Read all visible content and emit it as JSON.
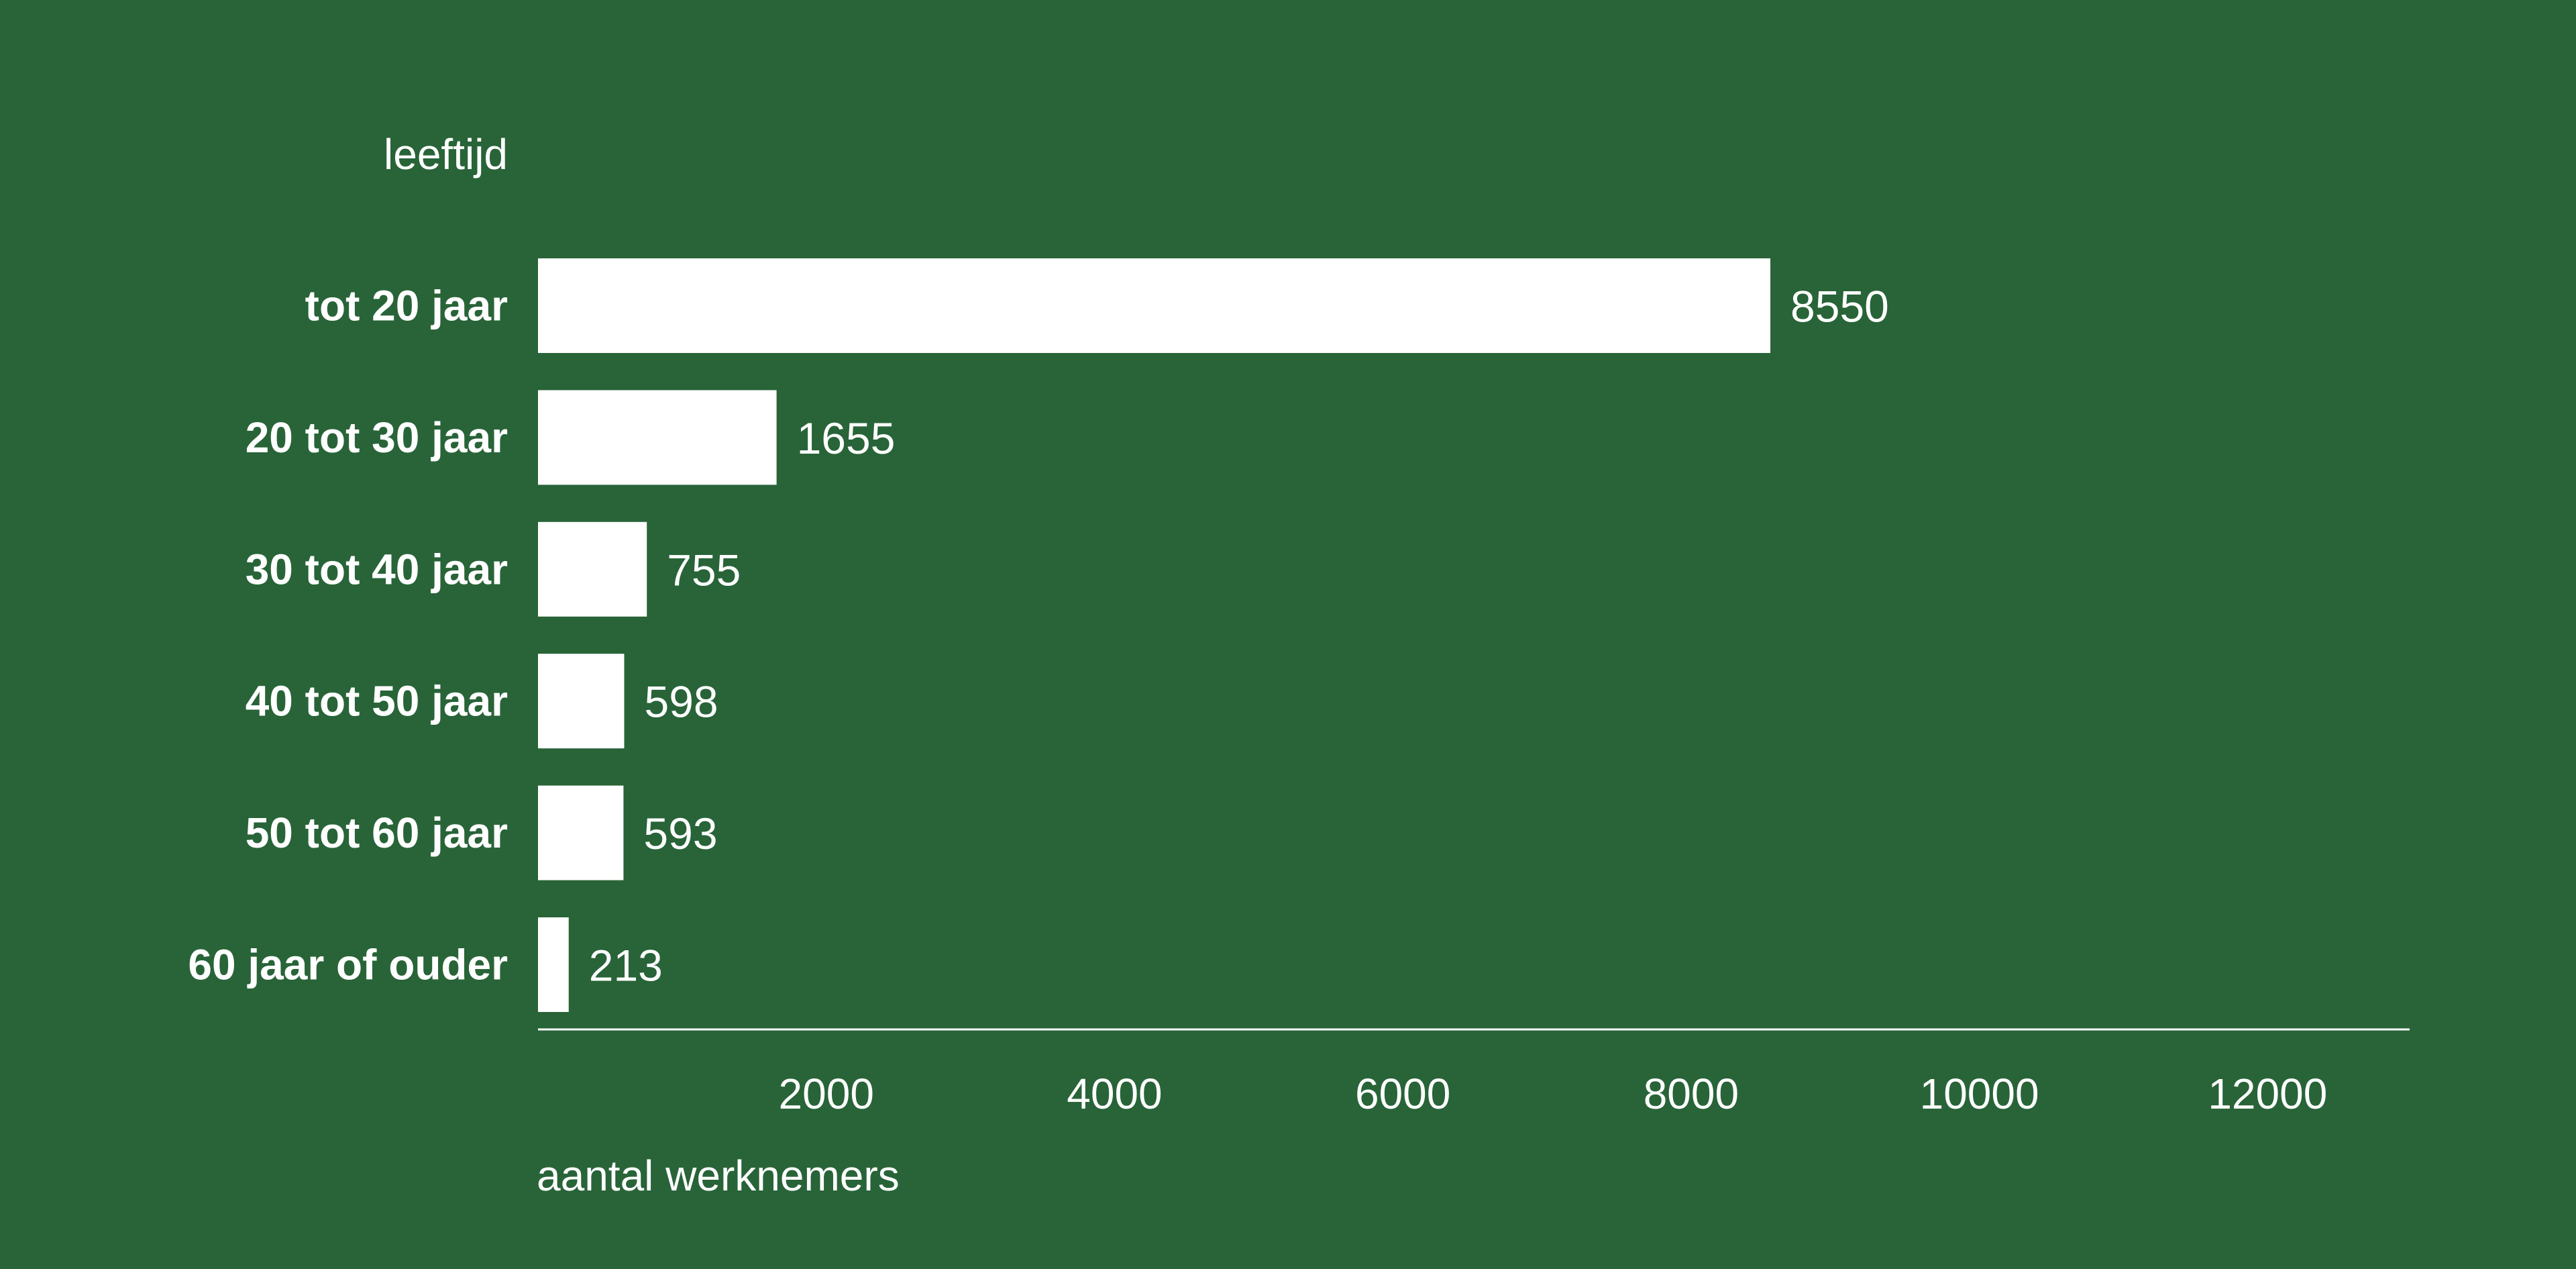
{
  "chart_data": {
    "type": "bar",
    "orientation": "horizontal",
    "categories": [
      "tot 20 jaar",
      "20 tot 30 jaar",
      "30 tot 40 jaar",
      "40 tot 50 jaar",
      "50 tot 60 jaar",
      "60 jaar of ouder"
    ],
    "values": [
      8550,
      1655,
      755,
      598,
      593,
      213
    ],
    "value_labels": [
      "8550",
      "1655",
      "755",
      "598",
      "593",
      "213"
    ],
    "xlabel": "aantal werknemers",
    "ylabel": "leeftijd",
    "xlim": [
      0,
      13000
    ],
    "xticks": [
      2000,
      4000,
      6000,
      8000,
      10000,
      12000
    ],
    "xtick_labels": [
      "2000",
      "4000",
      "6000",
      "8000",
      "10000",
      "12000"
    ],
    "grid": false,
    "legend": "none",
    "colors": {
      "background": "#286438",
      "bar": "#ffffff",
      "text": "#ffffff",
      "axis": "#ffffff"
    }
  }
}
